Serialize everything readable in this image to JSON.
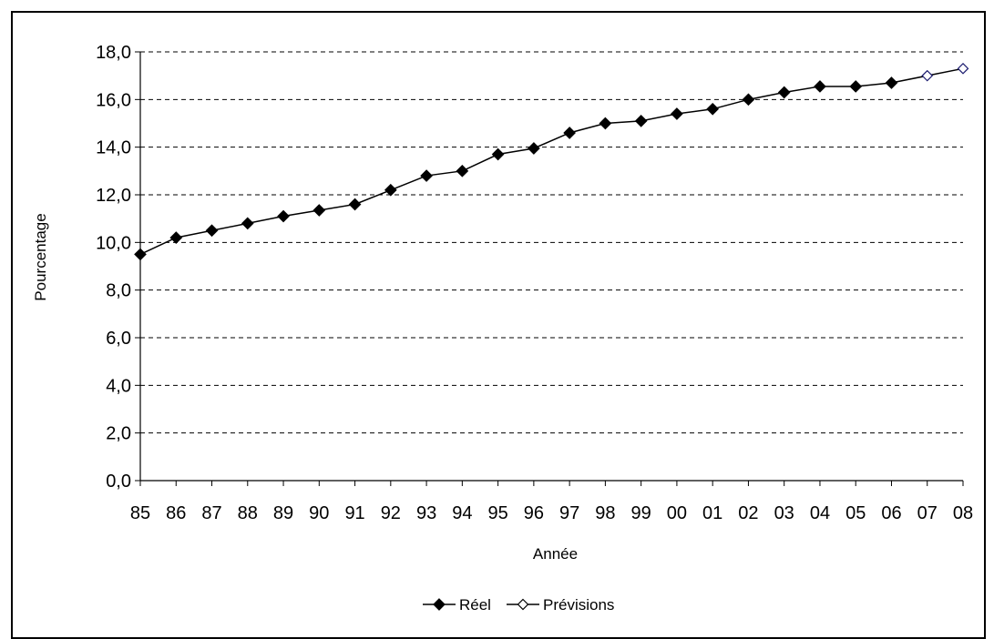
{
  "chart_data": {
    "type": "line",
    "title": "",
    "xlabel": "Année",
    "ylabel": "Pourcentage",
    "categories": [
      "85",
      "86",
      "87",
      "88",
      "89",
      "90",
      "91",
      "92",
      "93",
      "94",
      "95",
      "96",
      "97",
      "98",
      "99",
      "00",
      "01",
      "02",
      "03",
      "04",
      "05",
      "06",
      "07",
      "08"
    ],
    "ylim": [
      0,
      18
    ],
    "yticks": [
      "0,0",
      "2,0",
      "4,0",
      "6,0",
      "8,0",
      "10,0",
      "12,0",
      "14,0",
      "16,0",
      "18,0"
    ],
    "grid": true,
    "legend_position": "bottom",
    "series": [
      {
        "name": "Réel",
        "marker": "filled-diamond",
        "color": "#000000",
        "x": [
          "85",
          "86",
          "87",
          "88",
          "89",
          "90",
          "91",
          "92",
          "93",
          "94",
          "95",
          "96",
          "97",
          "98",
          "99",
          "00",
          "01",
          "02",
          "03",
          "04",
          "05",
          "06"
        ],
        "values": [
          9.5,
          10.2,
          10.5,
          10.8,
          11.1,
          11.35,
          11.6,
          12.2,
          12.8,
          13.0,
          13.7,
          13.95,
          14.6,
          15.0,
          15.1,
          15.4,
          15.6,
          16.0,
          16.3,
          16.55,
          16.55,
          16.7
        ]
      },
      {
        "name": "Prévisions",
        "marker": "open-diamond",
        "color": "#000000",
        "marker_edge_color": "#1a1a6e",
        "x": [
          "06",
          "07",
          "08"
        ],
        "values": [
          16.7,
          17.0,
          17.3
        ]
      }
    ]
  }
}
